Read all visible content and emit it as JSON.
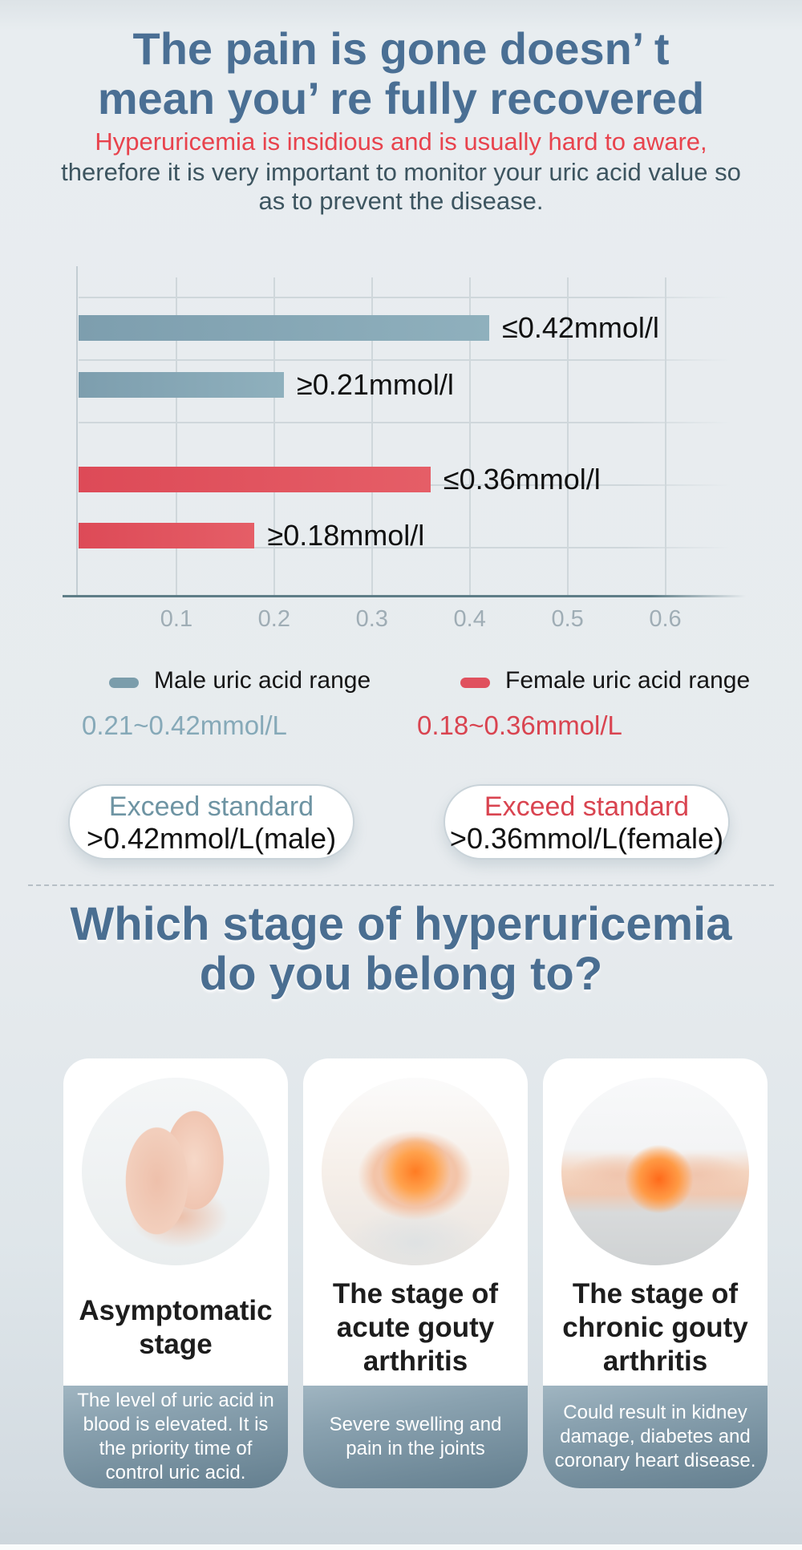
{
  "header": {
    "title_line1": "The pain is gone doesn’ t",
    "title_line2": "mean you’ re fully recovered",
    "subtitle_red": "Hyperuricemia is insidious and is usually hard to aware,",
    "subtitle_dark_line1": "therefore it is very important to monitor your uric acid value so",
    "subtitle_dark_line2": "as to prevent the disease."
  },
  "chart_data": {
    "type": "bar",
    "orientation": "horizontal",
    "title": "",
    "xlabel": "mmol/l",
    "xlim": [
      0,
      0.666
    ],
    "grid": true,
    "x_ticks": [
      "0.1",
      "0.2",
      "0.3",
      "0.4",
      "0.5",
      "0.6"
    ],
    "bars": [
      {
        "label": "≤0.42mmol/l",
        "value": 0.42,
        "series": "male",
        "color_start": "#7d9eae",
        "color_end": "#8fb0bd"
      },
      {
        "label": "≥0.21mmol/l",
        "value": 0.21,
        "series": "male",
        "color_start": "#7d9eae",
        "color_end": "#8fb0bd"
      },
      {
        "label": "≤0.36mmol/l",
        "value": 0.36,
        "series": "female",
        "color_start": "#dd4a57",
        "color_end": "#e55e67"
      },
      {
        "label": "≥0.18mmol/l",
        "value": 0.18,
        "series": "female",
        "color_start": "#dd4a57",
        "color_end": "#e55e67"
      }
    ]
  },
  "legend": {
    "male": {
      "label": "Male uric acid range",
      "range": "0.21~0.42mmol/L",
      "color": "#7b9dab"
    },
    "female": {
      "label": "Female uric acid range",
      "range": "0.18~0.36mmol/L",
      "color": "#e0515e"
    }
  },
  "pills": {
    "male": {
      "title": "Exceed standard",
      "value": ">0.42mmol/L(male)"
    },
    "female": {
      "title": "Exceed standard",
      "value": ">0.36mmol/L(female)"
    }
  },
  "stages": {
    "heading_line1": "Which stage of hyperuricemia",
    "heading_line2": "do you belong to?",
    "cards": [
      {
        "title": "Asymptomatic stage",
        "desc": "The level of uric acid in blood is elevated. It is the priority time of control uric acid.",
        "image": "hand-massage-photo"
      },
      {
        "title": "The stage of acute gouty arthritis",
        "desc": "Severe swelling and pain in the joints",
        "image": "knee-pain-photo"
      },
      {
        "title": "The stage of chronic gouty arthritis",
        "desc": "Could result in kidney damage, diabetes and coronary heart disease.",
        "image": "lower-back-pain-photo"
      }
    ]
  }
}
